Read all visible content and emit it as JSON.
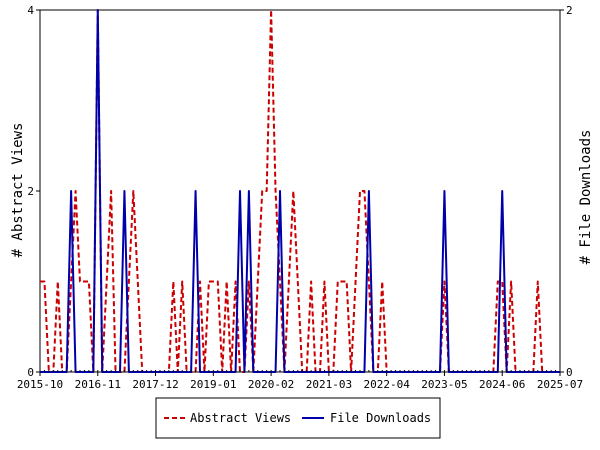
{
  "chart_data": {
    "type": "line",
    "x_start": "2015-10",
    "x_end": "2025-07",
    "x_ticks": [
      "2015-10",
      "2016-11",
      "2017-12",
      "2019-01",
      "2020-02",
      "2021-03",
      "2022-04",
      "2023-05",
      "2024-06",
      "2025-07"
    ],
    "y_left": {
      "label": "# Abstract Views",
      "ylim": [
        0,
        4
      ],
      "ticks": [
        "0",
        "2",
        "4"
      ]
    },
    "y_right": {
      "label": "# File Downloads",
      "ylim": [
        0,
        2
      ],
      "ticks": [
        "0",
        "2"
      ]
    },
    "legend_placement": "bottom-center",
    "series": [
      {
        "name": "Abstract Views",
        "axis": "left",
        "color": "#cc0000",
        "style": "dashed",
        "points": [
          [
            "2015-10",
            1
          ],
          [
            "2015-11",
            1
          ],
          [
            "2015-12",
            0
          ],
          [
            "2016-01",
            0
          ],
          [
            "2016-02",
            1
          ],
          [
            "2016-03",
            0
          ],
          [
            "2016-04",
            0
          ],
          [
            "2016-05",
            1
          ],
          [
            "2016-06",
            2
          ],
          [
            "2016-07",
            1
          ],
          [
            "2016-08",
            1
          ],
          [
            "2016-09",
            1
          ],
          [
            "2016-10",
            0
          ],
          [
            "2016-11",
            4
          ],
          [
            "2016-12",
            0
          ],
          [
            "2017-01",
            1
          ],
          [
            "2017-02",
            2
          ],
          [
            "2017-03",
            0
          ],
          [
            "2017-04",
            0
          ],
          [
            "2017-05",
            0
          ],
          [
            "2017-06",
            1
          ],
          [
            "2017-07",
            2
          ],
          [
            "2017-08",
            1
          ],
          [
            "2017-09",
            0
          ],
          [
            "2017-10",
            0
          ],
          [
            "2017-11",
            0
          ],
          [
            "2017-12",
            0
          ],
          [
            "2018-01",
            0
          ],
          [
            "2018-02",
            0
          ],
          [
            "2018-03",
            0
          ],
          [
            "2018-04",
            1
          ],
          [
            "2018-05",
            0
          ],
          [
            "2018-06",
            1
          ],
          [
            "2018-07",
            0
          ],
          [
            "2018-08",
            0
          ],
          [
            "2018-09",
            0
          ],
          [
            "2018-10",
            1
          ],
          [
            "2018-11",
            0
          ],
          [
            "2018-12",
            1
          ],
          [
            "2018-13",
            1
          ],
          [
            "2019-02",
            1
          ],
          [
            "2019-03",
            0
          ],
          [
            "2019-04",
            1
          ],
          [
            "2019-05",
            0
          ],
          [
            "2019-06",
            1
          ],
          [
            "2019-07",
            0
          ],
          [
            "2019-08",
            0
          ],
          [
            "2019-09",
            1
          ],
          [
            "2019-10",
            0
          ],
          [
            "2019-11",
            1
          ],
          [
            "2019-12",
            2
          ],
          [
            "2020-01",
            2
          ],
          [
            "2020-02",
            4
          ],
          [
            "2020-03",
            2
          ],
          [
            "2020-04",
            1
          ],
          [
            "2020-05",
            0
          ],
          [
            "2020-06",
            1
          ],
          [
            "2020-07",
            2
          ],
          [
            "2020-08",
            1
          ],
          [
            "2020-09",
            0
          ],
          [
            "2020-10",
            0
          ],
          [
            "2020-11",
            1
          ],
          [
            "2020-12",
            0
          ],
          [
            "2021-01",
            0
          ],
          [
            "2021-02",
            1
          ],
          [
            "2021-03",
            0
          ],
          [
            "2021-04",
            0
          ],
          [
            "2021-05",
            1
          ],
          [
            "2021-06",
            1
          ],
          [
            "2021-07",
            1
          ],
          [
            "2021-08",
            0
          ],
          [
            "2021-09",
            1
          ],
          [
            "2021-10",
            2
          ],
          [
            "2021-11",
            2
          ],
          [
            "2021-12",
            1
          ],
          [
            "2022-01",
            0
          ],
          [
            "2022-02",
            0
          ],
          [
            "2022-03",
            1
          ],
          [
            "2022-04",
            0
          ],
          [
            "2022-05",
            0
          ],
          [
            "2022-06",
            0
          ],
          [
            "2022-07",
            0
          ],
          [
            "2022-08",
            0
          ],
          [
            "2022-09",
            0
          ],
          [
            "2022-10",
            0
          ],
          [
            "2022-11",
            0
          ],
          [
            "2022-12",
            0
          ],
          [
            "2023-01",
            0
          ],
          [
            "2023-02",
            0
          ],
          [
            "2023-03",
            0
          ],
          [
            "2023-04",
            0
          ],
          [
            "2023-05",
            1
          ],
          [
            "2023-06",
            0
          ],
          [
            "2023-07",
            0
          ],
          [
            "2023-08",
            0
          ],
          [
            "2023-09",
            0
          ],
          [
            "2023-10",
            0
          ],
          [
            "2023-11",
            0
          ],
          [
            "2023-12",
            0
          ],
          [
            "2024-01",
            0
          ],
          [
            "2024-02",
            0
          ],
          [
            "2024-03",
            0
          ],
          [
            "2024-04",
            0
          ],
          [
            "2024-05",
            1
          ],
          [
            "2024-06",
            1
          ],
          [
            "2024-07",
            0
          ],
          [
            "2024-08",
            1
          ],
          [
            "2024-09",
            0
          ],
          [
            "2024-10",
            0
          ],
          [
            "2024-11",
            0
          ],
          [
            "2024-12",
            0
          ],
          [
            "2025-01",
            0
          ],
          [
            "2025-02",
            1
          ],
          [
            "2025-03",
            0
          ],
          [
            "2025-04",
            0
          ],
          [
            "2025-05",
            0
          ],
          [
            "2025-06",
            0
          ],
          [
            "2025-07",
            0
          ]
        ]
      },
      {
        "name": "File Downloads",
        "axis": "right",
        "color": "#0000aa",
        "style": "solid",
        "points": [
          [
            "2015-10",
            0
          ],
          [
            "2016-01",
            0
          ],
          [
            "2016-04",
            0
          ],
          [
            "2016-05",
            1
          ],
          [
            "2016-06",
            0
          ],
          [
            "2016-09",
            0
          ],
          [
            "2016-10",
            0
          ],
          [
            "2016-11",
            2
          ],
          [
            "2016-12",
            0
          ],
          [
            "2017-04",
            0
          ],
          [
            "2017-05",
            1
          ],
          [
            "2017-06",
            0
          ],
          [
            "2018-08",
            0
          ],
          [
            "2018-09",
            1
          ],
          [
            "2018-10",
            0
          ],
          [
            "2019-06",
            0
          ],
          [
            "2019-07",
            1
          ],
          [
            "2019-08",
            0
          ],
          [
            "2019-09",
            1
          ],
          [
            "2019-10",
            0
          ],
          [
            "2020-03",
            0
          ],
          [
            "2020-04",
            1
          ],
          [
            "2020-05",
            0
          ],
          [
            "2021-11",
            0
          ],
          [
            "2021-12",
            1
          ],
          [
            "2022-01",
            0
          ],
          [
            "2023-04",
            0
          ],
          [
            "2023-05",
            1
          ],
          [
            "2023-06",
            0
          ],
          [
            "2024-05",
            0
          ],
          [
            "2024-06",
            1
          ],
          [
            "2024-07",
            0
          ],
          [
            "2025-07",
            0
          ]
        ]
      }
    ]
  }
}
